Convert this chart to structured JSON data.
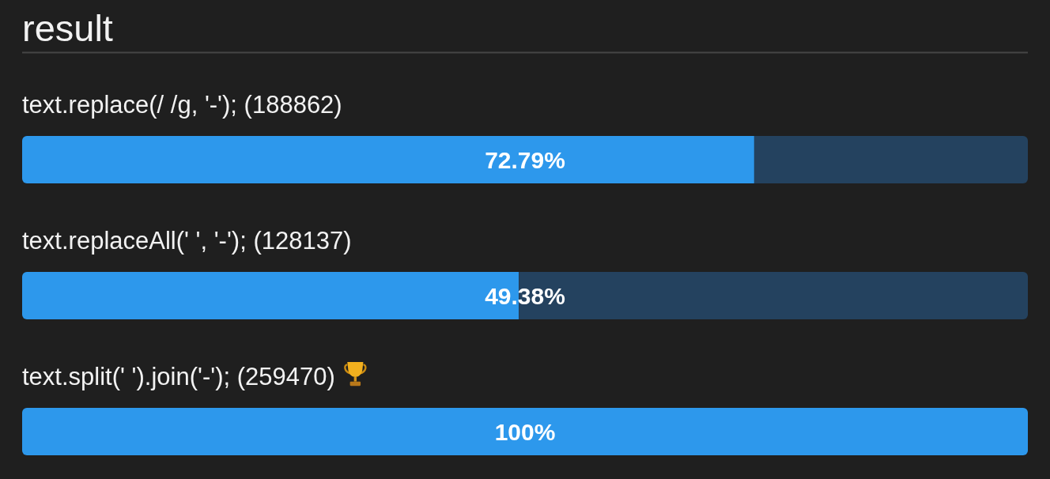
{
  "chart_data": {
    "type": "bar",
    "orientation": "horizontal",
    "stacked": true,
    "title": "result",
    "categories": [
      "text.replace(/ /g, '-'); (188862)",
      "text.replaceAll(' ', '-'); (128137)",
      "text.split(' ').join('-'); (259470)"
    ],
    "series": [
      {
        "color": "#2d98ec",
        "values": [
          72.79,
          49.38,
          100
        ],
        "value_labels": [
          "72.79%",
          "49.38%",
          "100%"
        ]
      },
      {
        "color": "#24425f",
        "values": [
          27.21,
          50.62,
          null
        ]
      }
    ]
  }
}
